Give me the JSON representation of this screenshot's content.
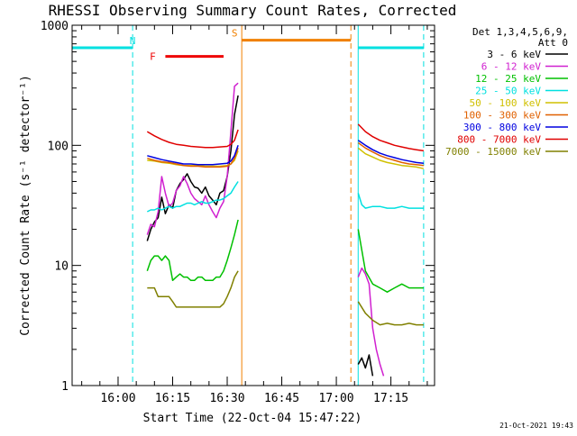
{
  "chart_data": {
    "type": "line",
    "title": "RHESSI Observing Summary Count Rates, Corrected",
    "xlabel": "Start Time (22-Oct-04 15:47:22)",
    "ylabel": "Corrected Count Rate (s⁻¹ detector⁻¹)",
    "y_scale": "log",
    "ylim": [
      1,
      1000
    ],
    "xlim": [
      "15:47:22",
      "17:27:00"
    ],
    "x_ticks": [
      "16:00",
      "16:15",
      "16:30",
      "16:45",
      "17:00",
      "17:15"
    ],
    "y_ticks": [
      {
        "value": 1,
        "label": "1"
      },
      {
        "value": 10,
        "label": "10"
      },
      {
        "value": 100,
        "label": "100"
      },
      {
        "value": 1000,
        "label": "1000"
      }
    ],
    "legend_header": [
      "Det 1,3,4,5,6,9,",
      "Att 0"
    ],
    "legend_position": "right",
    "grid": false,
    "timestamp": "21-Oct-2021 19:43",
    "series": [
      {
        "name": "3 - 6 keV",
        "color": "#000000",
        "segments": [
          {
            "x": [
              "16:08",
              "16:09",
              "16:10",
              "16:11",
              "16:12",
              "16:13",
              "16:14",
              "16:15",
              "16:16",
              "16:17",
              "16:18",
              "16:19",
              "16:20",
              "16:21",
              "16:22",
              "16:23",
              "16:24",
              "16:25",
              "16:26",
              "16:27",
              "16:28",
              "16:29",
              "16:30",
              "16:31",
              "16:32",
              "16:33"
            ],
            "y": [
              16,
              20,
              23,
              25,
              37,
              27,
              32,
              30,
              42,
              48,
              52,
              58,
              50,
              45,
              44,
              40,
              45,
              38,
              35,
              32,
              40,
              42,
              55,
              90,
              180,
              260
            ]
          },
          {
            "x": [
              "17:06",
              "17:07",
              "17:08",
              "17:09",
              "17:10"
            ],
            "y": [
              1.5,
              1.7,
              1.4,
              1.8,
              1.2
            ]
          }
        ]
      },
      {
        "name": "6 - 12 keV",
        "color": "#d020d0",
        "segments": [
          {
            "x": [
              "16:08",
              "16:09",
              "16:10",
              "16:11",
              "16:12",
              "16:13",
              "16:14",
              "16:15",
              "16:16",
              "16:17",
              "16:18",
              "16:19",
              "16:20",
              "16:21",
              "16:22",
              "16:23",
              "16:24",
              "16:25",
              "16:26",
              "16:27",
              "16:28",
              "16:29",
              "16:30",
              "16:31",
              "16:32",
              "16:33"
            ],
            "y": [
              18,
              22,
              21,
              28,
              55,
              40,
              31,
              33,
              42,
              46,
              55,
              48,
              40,
              36,
              34,
              32,
              38,
              32,
              28,
              25,
              30,
              34,
              55,
              130,
              310,
              330
            ]
          },
          {
            "x": [
              "17:06",
              "17:07",
              "17:08",
              "17:09",
              "17:10",
              "17:11",
              "17:12",
              "17:13"
            ],
            "y": [
              8,
              9.5,
              8.5,
              7,
              3,
              2,
              1.5,
              1.2
            ]
          }
        ]
      },
      {
        "name": "12 - 25 keV",
        "color": "#00c000",
        "segments": [
          {
            "x": [
              "16:08",
              "16:09",
              "16:10",
              "16:11",
              "16:12",
              "16:13",
              "16:14",
              "16:15",
              "16:16",
              "16:17",
              "16:18",
              "16:19",
              "16:20",
              "16:21",
              "16:22",
              "16:23",
              "16:24",
              "16:25",
              "16:26",
              "16:27",
              "16:28",
              "16:29",
              "16:30",
              "16:31",
              "16:32",
              "16:33"
            ],
            "y": [
              9,
              11,
              12,
              12,
              11,
              12,
              11,
              7.5,
              8,
              8.5,
              8,
              8,
              7.5,
              7.5,
              8,
              8,
              7.5,
              7.5,
              7.5,
              8,
              8,
              9,
              11,
              14,
              18,
              24
            ]
          },
          {
            "x": [
              "17:06",
              "17:08",
              "17:10",
              "17:12",
              "17:14",
              "17:16",
              "17:18",
              "17:20",
              "17:22",
              "17:24"
            ],
            "y": [
              20,
              9,
              7,
              6.5,
              6,
              6.5,
              7,
              6.5,
              6.5,
              6.5
            ]
          }
        ]
      },
      {
        "name": "25 - 50 keV",
        "color": "#00e0e0",
        "segments": [
          {
            "x": [
              "16:08",
              "16:09",
              "16:10",
              "16:11",
              "16:12",
              "16:13",
              "16:14",
              "16:15",
              "16:16",
              "16:17",
              "16:18",
              "16:19",
              "16:20",
              "16:21",
              "16:22",
              "16:23",
              "16:24",
              "16:25",
              "16:26",
              "16:27",
              "16:28",
              "16:29",
              "16:30",
              "16:31",
              "16:32",
              "16:33"
            ],
            "y": [
              28,
              29,
              29,
              30,
              29,
              30,
              31,
              30,
              31,
              31,
              32,
              33,
              33,
              32,
              33,
              34,
              33,
              33,
              34,
              35,
              35,
              36,
              38,
              40,
              45,
              50
            ]
          },
          {
            "x": [
              "17:06",
              "17:07",
              "17:08",
              "17:10",
              "17:12",
              "17:14",
              "17:16",
              "17:18",
              "17:20",
              "17:22",
              "17:24"
            ],
            "y": [
              40,
              32,
              30,
              31,
              31,
              30,
              30,
              31,
              30,
              30,
              30
            ]
          }
        ]
      },
      {
        "name": "50 - 100 keV",
        "color": "#d0c000",
        "segments": [
          {
            "x": [
              "16:08",
              "16:10",
              "16:12",
              "16:14",
              "16:16",
              "16:18",
              "16:20",
              "16:22",
              "16:24",
              "16:26",
              "16:28",
              "16:30",
              "16:31",
              "16:32",
              "16:33"
            ],
            "y": [
              75,
              74,
              72,
              71,
              69,
              68,
              68,
              68,
              67,
              67,
              67,
              68,
              70,
              75,
              90
            ]
          },
          {
            "x": [
              "17:06",
              "17:08",
              "17:10",
              "17:12",
              "17:14",
              "17:16",
              "17:18",
              "17:20",
              "17:22",
              "17:24"
            ],
            "y": [
              95,
              85,
              80,
              75,
              72,
              70,
              68,
              67,
              66,
              64
            ]
          }
        ]
      },
      {
        "name": "100 - 300 keV",
        "color": "#e06000",
        "segments": [
          {
            "x": [
              "16:08",
              "16:10",
              "16:12",
              "16:14",
              "16:16",
              "16:18",
              "16:20",
              "16:22",
              "16:24",
              "16:26",
              "16:28",
              "16:30",
              "16:31",
              "16:32",
              "16:33"
            ],
            "y": [
              78,
              75,
              73,
              72,
              70,
              68,
              67,
              67,
              66,
              66,
              66,
              67,
              70,
              78,
              95
            ]
          },
          {
            "x": [
              "17:06",
              "17:08",
              "17:10",
              "17:12",
              "17:14",
              "17:16",
              "17:18",
              "17:20",
              "17:22",
              "17:24"
            ],
            "y": [
              105,
              95,
              88,
              82,
              78,
              75,
              72,
              70,
              69,
              68
            ]
          }
        ]
      },
      {
        "name": "300 - 800 keV",
        "color": "#0000e0",
        "segments": [
          {
            "x": [
              "16:08",
              "16:10",
              "16:12",
              "16:14",
              "16:16",
              "16:18",
              "16:20",
              "16:22",
              "16:24",
              "16:26",
              "16:28",
              "16:30",
              "16:31",
              "16:32",
              "16:33"
            ],
            "y": [
              82,
              79,
              76,
              74,
              72,
              70,
              70,
              69,
              69,
              69,
              70,
              71,
              74,
              82,
              100
            ]
          },
          {
            "x": [
              "17:06",
              "17:08",
              "17:10",
              "17:12",
              "17:14",
              "17:16",
              "17:18",
              "17:20",
              "17:22",
              "17:24"
            ],
            "y": [
              110,
              100,
              92,
              86,
              82,
              79,
              76,
              74,
              72,
              71
            ]
          }
        ]
      },
      {
        "name": "800 - 7000 keV",
        "color": "#e00000",
        "segments": [
          {
            "x": [
              "16:08",
              "16:10",
              "16:12",
              "16:14",
              "16:16",
              "16:18",
              "16:20",
              "16:22",
              "16:24",
              "16:26",
              "16:28",
              "16:30",
              "16:31",
              "16:32",
              "16:33"
            ],
            "y": [
              130,
              120,
              112,
              106,
              102,
              100,
              98,
              97,
              96,
              96,
              97,
              98,
              102,
              110,
              135
            ]
          },
          {
            "x": [
              "17:06",
              "17:08",
              "17:10",
              "17:12",
              "17:14",
              "17:16",
              "17:18",
              "17:20",
              "17:22",
              "17:24"
            ],
            "y": [
              150,
              130,
              118,
              110,
              105,
              100,
              97,
              94,
              92,
              90
            ]
          }
        ]
      },
      {
        "name": "7000 - 15000 keV",
        "color": "#808000",
        "segments": [
          {
            "x": [
              "16:08",
              "16:09",
              "16:10",
              "16:11",
              "16:12",
              "16:13",
              "16:14",
              "16:15",
              "16:16",
              "16:17",
              "16:18",
              "16:19",
              "16:20",
              "16:21",
              "16:22",
              "16:23",
              "16:24",
              "16:25",
              "16:26",
              "16:27",
              "16:28",
              "16:29",
              "16:30",
              "16:31",
              "16:32",
              "16:33"
            ],
            "y": [
              6.5,
              6.5,
              6.5,
              5.5,
              5.5,
              5.5,
              5.5,
              5,
              4.5,
              4.5,
              4.5,
              4.5,
              4.5,
              4.5,
              4.5,
              4.5,
              4.5,
              4.5,
              4.5,
              4.5,
              4.5,
              4.8,
              5.5,
              6.5,
              8,
              9
            ]
          },
          {
            "x": [
              "17:06",
              "17:08",
              "17:10",
              "17:12",
              "17:14",
              "17:16",
              "17:18",
              "17:20",
              "17:22",
              "17:24"
            ],
            "y": [
              5,
              4,
              3.5,
              3.2,
              3.3,
              3.2,
              3.2,
              3.3,
              3.2,
              3.2
            ]
          }
        ]
      }
    ],
    "flag_bars": [
      {
        "label": "N",
        "color": "#00e0e0",
        "level": 650,
        "segments": [
          [
            "15:47:22",
            "16:04"
          ],
          [
            "17:06",
            "17:24"
          ]
        ]
      },
      {
        "label": "F",
        "color": "#ee0000",
        "level": 550,
        "segments": [
          [
            "16:13",
            "16:29"
          ]
        ]
      },
      {
        "label": "S",
        "color": "#f08000",
        "level": 750,
        "segments": [
          [
            "16:34",
            "17:04"
          ]
        ]
      }
    ],
    "vertical_markers": [
      {
        "time": "16:04",
        "color": "#00e0e0",
        "style": "dashed"
      },
      {
        "time": "16:34",
        "color": "#f08000",
        "style": "solid"
      },
      {
        "time": "17:04",
        "color": "#f08000",
        "style": "dashed"
      },
      {
        "time": "17:06",
        "color": "#00e0e0",
        "style": "solid"
      },
      {
        "time": "17:24",
        "color": "#00e0e0",
        "style": "dashed"
      }
    ]
  }
}
